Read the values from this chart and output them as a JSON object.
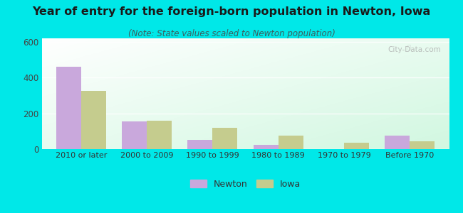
{
  "title": "Year of entry for the foreign-born population in Newton, Iowa",
  "subtitle": "(Note: State values scaled to Newton population)",
  "categories": [
    "2010 or later",
    "2000 to 2009",
    "1990 to 1999",
    "1980 to 1989",
    "1970 to 1979",
    "Before 1970"
  ],
  "newton_values": [
    460,
    155,
    50,
    25,
    0,
    75
  ],
  "iowa_values": [
    325,
    158,
    120,
    75,
    35,
    42
  ],
  "newton_color": "#c9a8dc",
  "iowa_color": "#c5cc8e",
  "background_outer": "#00e8e8",
  "ylim": [
    0,
    620
  ],
  "yticks": [
    0,
    200,
    400,
    600
  ],
  "legend_labels": [
    "Newton",
    "Iowa"
  ],
  "bar_width": 0.38,
  "title_fontsize": 11.5,
  "subtitle_fontsize": 8.5
}
